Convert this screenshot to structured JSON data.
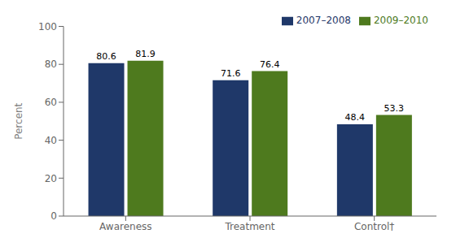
{
  "chart_data": {
    "type": "bar",
    "categories": [
      "Awareness",
      "Treatment",
      "Control†"
    ],
    "series": [
      {
        "name": "2007–2008",
        "color": "#1f3869",
        "values": [
          80.6,
          71.6,
          48.4
        ]
      },
      {
        "name": "2009–2010",
        "color": "#4e7a1e",
        "values": [
          81.9,
          76.4,
          53.3
        ]
      }
    ],
    "ylabel": "Percent",
    "ylim": [
      0,
      100
    ],
    "yticks": [
      0,
      20,
      40,
      60,
      80,
      100
    ],
    "grid": false,
    "legend": "upper right",
    "data_labels": true
  }
}
